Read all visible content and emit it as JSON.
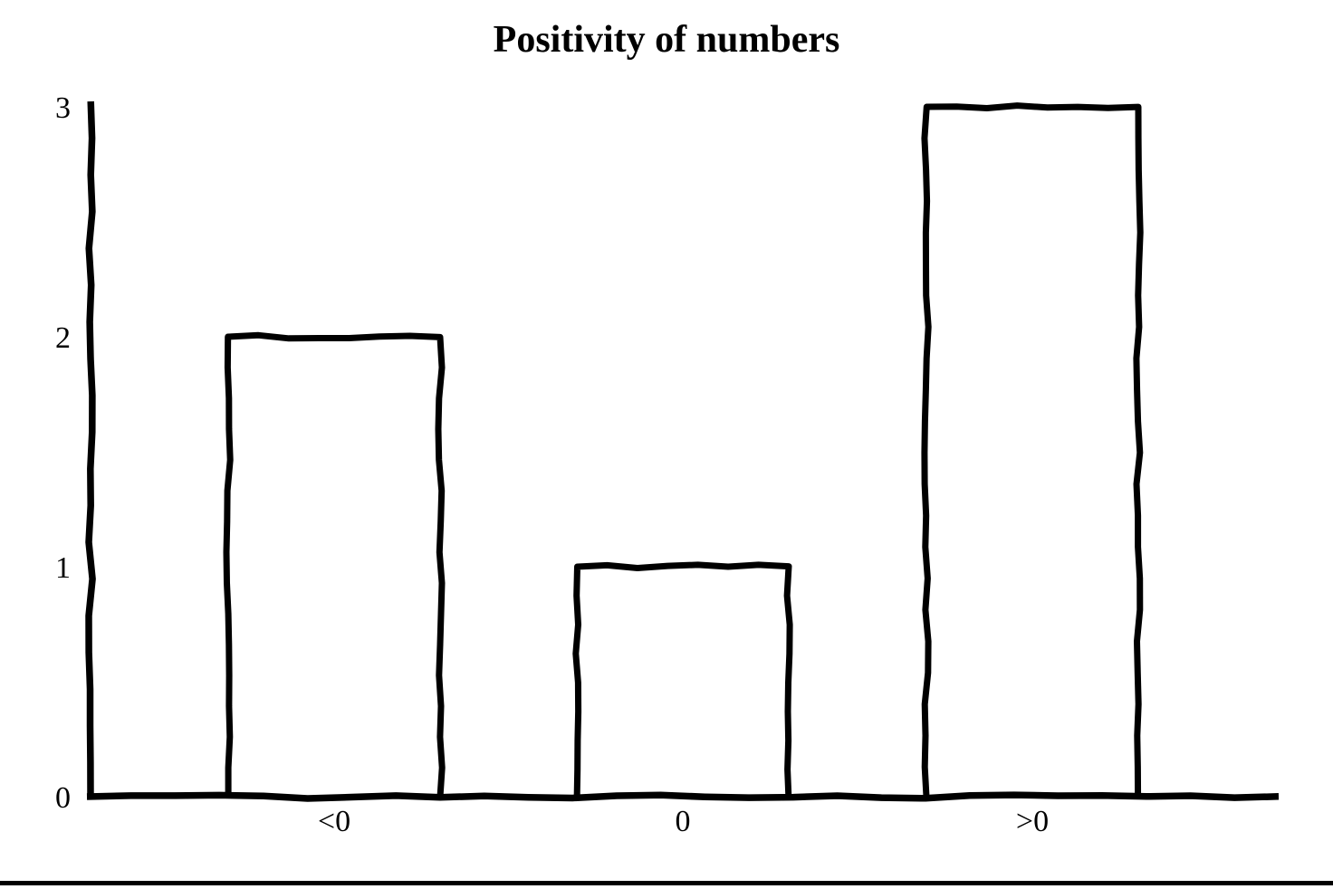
{
  "chart_data": {
    "type": "bar",
    "title": "Positivity of numbers",
    "categories": [
      "<0",
      "0",
      ">0"
    ],
    "values": [
      2,
      1,
      3
    ],
    "xlabel": "",
    "ylabel": "",
    "ylim": [
      0,
      3
    ],
    "yticks": [
      0,
      1,
      2,
      3
    ],
    "grid": false,
    "legend": "none",
    "colors": {
      "stroke": "#000000",
      "bar_fill": "#ffffff",
      "background": "#ffffff"
    },
    "style": "hand-drawn-outline"
  }
}
